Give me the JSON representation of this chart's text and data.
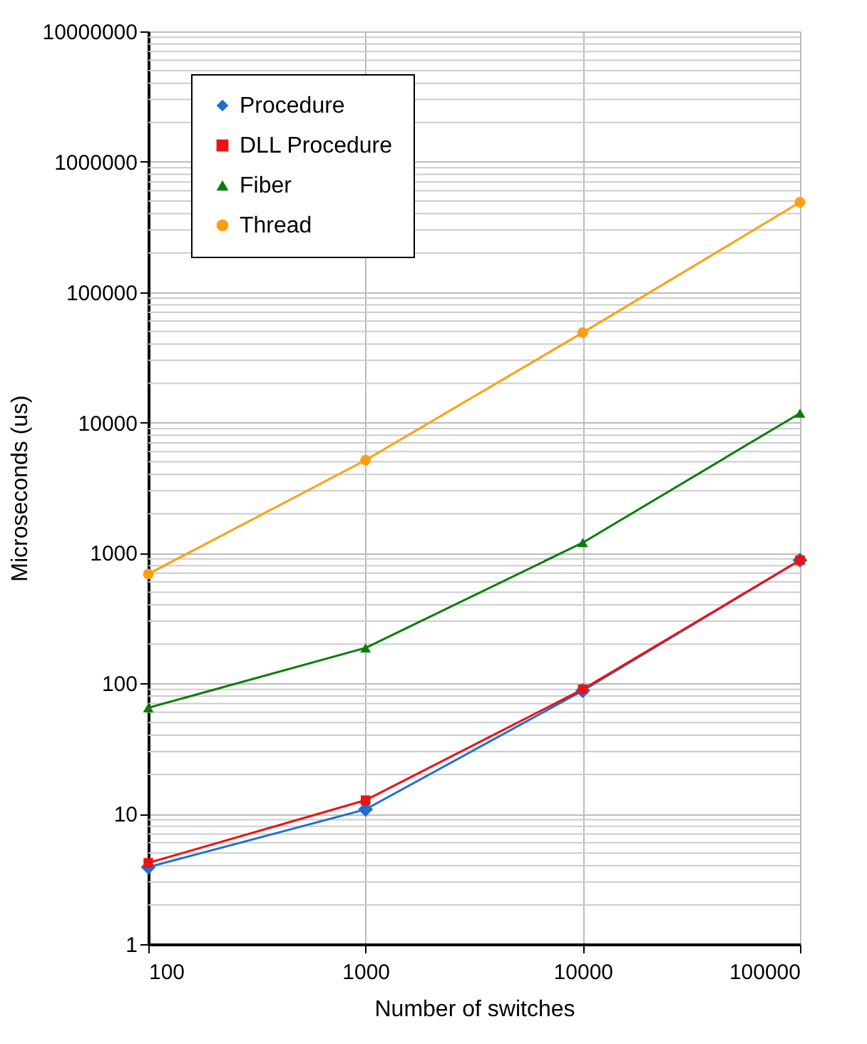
{
  "chart_data": {
    "type": "line",
    "xlabel": "Number of switches",
    "ylabel": "Microseconds (us)",
    "x": [
      100,
      1000,
      10000,
      100000
    ],
    "series": [
      {
        "name": "Procedure",
        "color": "#1f6fd0",
        "marker": "diamond",
        "values": [
          3.9,
          10.8,
          88,
          880
        ]
      },
      {
        "name": "DLL Procedure",
        "color": "#ee1111",
        "marker": "square",
        "values": [
          4.2,
          12.7,
          90,
          880
        ]
      },
      {
        "name": "Fiber",
        "color": "#0a7d0a",
        "marker": "triangle",
        "values": [
          65,
          187,
          1200,
          11800
        ]
      },
      {
        "name": "Thread",
        "color": "#ff9f0f",
        "marker": "circle",
        "values": [
          690,
          5150,
          49000,
          490000
        ]
      }
    ],
    "log": "xy",
    "xlim": [
      100,
      100000
    ],
    "xticks": [
      100,
      1000,
      10000,
      100000
    ],
    "ylim": [
      1,
      10000000
    ],
    "yticks": [
      1,
      10,
      100,
      1000,
      10000,
      100000,
      1000000,
      10000000
    ],
    "grid": true,
    "legend": "top left",
    "line_style": "solid"
  }
}
